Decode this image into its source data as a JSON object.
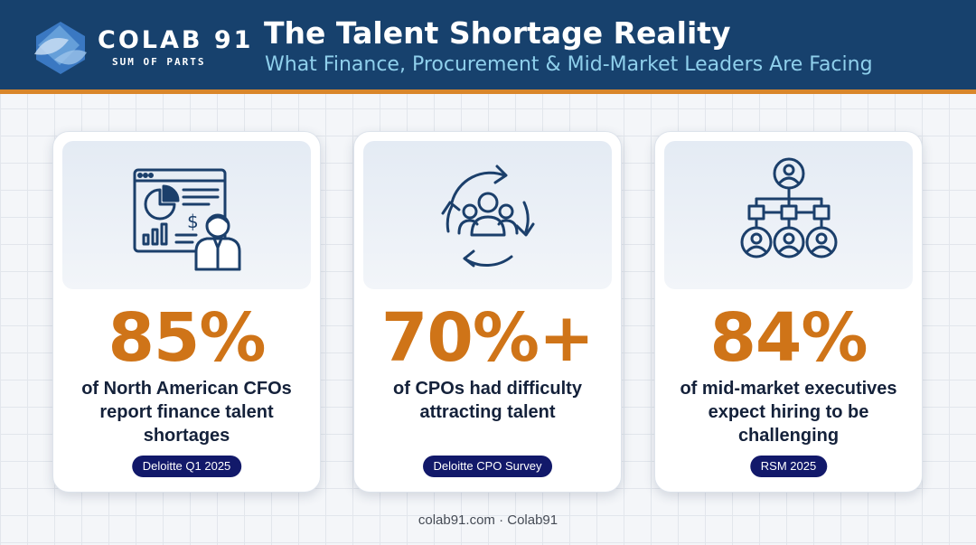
{
  "header": {
    "brand": "COLAB 91",
    "brand_tagline": "SUM OF PARTS",
    "title": "The Talent Shortage Reality",
    "subtitle": "What Finance, Procurement & Mid-Market Leaders Are Facing",
    "logo_icon": "colab91-logo-icon"
  },
  "colors": {
    "header_bg": "#17416d",
    "accent_orange": "#cf7418",
    "header_rule": "#d9862a",
    "subtitle": "#8fd0ec",
    "badge_bg": "#12196a",
    "icon_stroke": "#1b3f6b"
  },
  "cards": [
    {
      "icon": "financial-report-icon",
      "stat": "85%",
      "description": "of North American CFOs report finance talent shortages",
      "source": "Deloitte Q1 2025"
    },
    {
      "icon": "talent-cycle-icon",
      "stat": "70%+",
      "description": "of CPOs had difficulty attracting talent",
      "source": "Deloitte CPO Survey"
    },
    {
      "icon": "org-chart-icon",
      "stat": "84%",
      "description": "of mid-market executives expect hiring to be challenging",
      "source": "RSM 2025"
    }
  ],
  "footer": {
    "text": "colab91.com · Colab91"
  }
}
